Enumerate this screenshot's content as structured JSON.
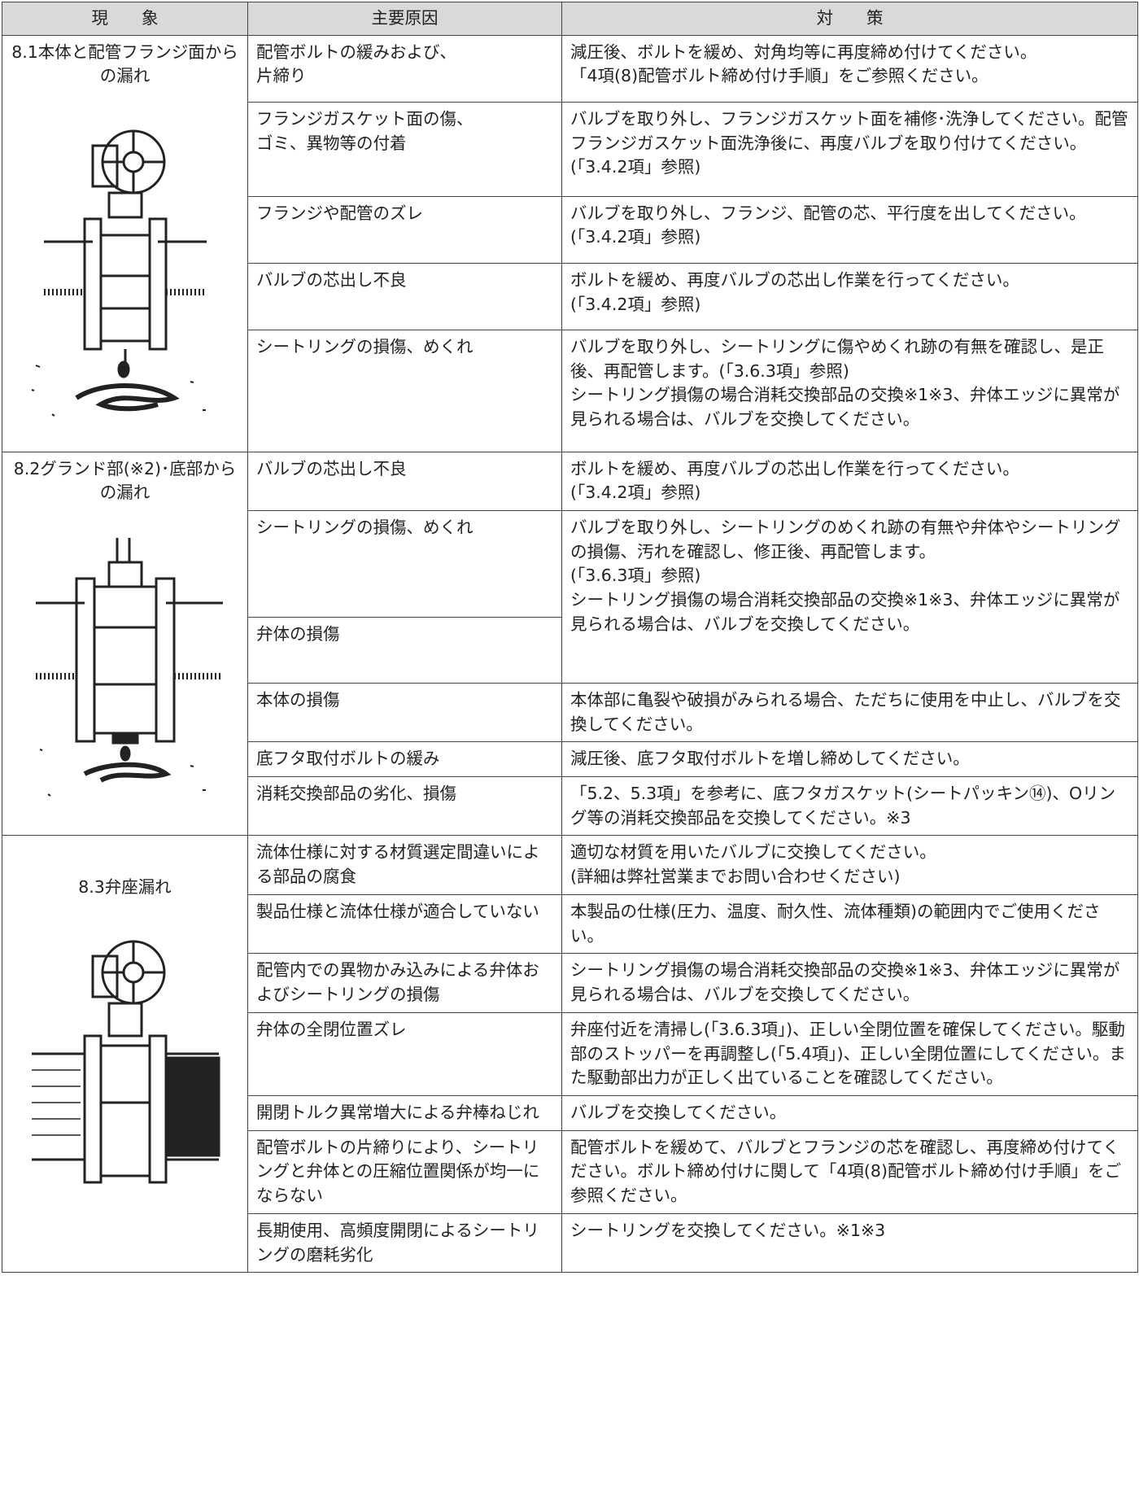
{
  "table": {
    "header": [
      "現　　象",
      "主要原因",
      "対　　策"
    ],
    "groups": [
      {
        "phenomenon": "8.1本体と配管フランジ面からの漏れ",
        "rows": [
          {
            "causes": [
              "配管ボルトの緩みおよび、\n片締り"
            ],
            "remedy": "減圧後、ボルトを緩め、対角均等に再度締め付けてください。\n「4項(8)配管ボルト締め付け手順」をご参照ください。"
          },
          {
            "causes": [
              "フランジガスケット面の傷、\nゴミ、異物等の付着"
            ],
            "remedy": "バルブを取り外し、フランジガスケット面を補修･洗浄してください。配管フランジガスケット面洗浄後に、再度バルブを取り付けてください。(「3.4.2項」参照)"
          },
          {
            "causes": [
              "フランジや配管のズレ"
            ],
            "remedy": "バルブを取り外し、フランジ、配管の芯、平行度を出してください。(「3.4.2項」参照)"
          },
          {
            "causes": [
              "バルブの芯出し不良"
            ],
            "remedy": "ボルトを緩め、再度バルブの芯出し作業を行ってください。\n(「3.4.2項」参照)"
          },
          {
            "causes": [
              "シートリングの損傷、めくれ"
            ],
            "remedy": "バルブを取り外し、シートリングに傷やめくれ跡の有無を確認し、是正後、再配管します。(「3.6.3項」参照)\nシートリング損傷の場合消耗交換部品の交換※1※3、弁体エッジに異常が見られる場合は、バルブを交換してください。"
          }
        ]
      },
      {
        "phenomenon": "8.2グランド部(※2)･底部からの漏れ",
        "rows": [
          {
            "causes": [
              "バルブの芯出し不良"
            ],
            "remedy": "ボルトを緩め、再度バルブの芯出し作業を行ってください。\n(「3.4.2項」参照)"
          },
          {
            "causes": [
              "シートリングの損傷、めくれ",
              "弁体の損傷"
            ],
            "remedy": "バルブを取り外し、シートリングのめくれ跡の有無や弁体やシートリングの損傷、汚れを確認し、修正後、再配管します。\n(「3.6.3項」参照)\nシートリング損傷の場合消耗交換部品の交換※1※3、弁体エッジに異常が見られる場合は、バルブを交換してください。"
          },
          {
            "causes": [
              "本体の損傷"
            ],
            "remedy": "本体部に亀裂や破損がみられる場合、ただちに使用を中止し、バルブを交換してください。"
          },
          {
            "causes": [
              "底フタ取付ボルトの緩み"
            ],
            "remedy": "減圧後、底フタ取付ボルトを増し締めしてください。"
          },
          {
            "causes": [
              "消耗交換部品の劣化、損傷"
            ],
            "remedy": "「5.2、5.3項」を参考に、底フタガスケット(シートパッキン⑭)、Oリング等の消耗交換部品を交換してください。※3"
          }
        ]
      },
      {
        "phenomenon": "8.3弁座漏れ",
        "rows": [
          {
            "causes": [
              "流体仕様に対する材質選定間違いによる部品の腐食"
            ],
            "remedy": "適切な材質を用いたバルブに交換してください。\n(詳細は弊社営業までお問い合わせください)"
          },
          {
            "causes": [
              "製品仕様と流体仕様が適合していない"
            ],
            "remedy": "本製品の仕様(圧力、温度、耐久性、流体種類)の範囲内でご使用ください。"
          },
          {
            "causes": [
              "配管内での異物かみ込みによる弁体およびシートリングの損傷"
            ],
            "remedy": "シートリング損傷の場合消耗交換部品の交換※1※3、弁体エッジに異常が見られる場合は、バルブを交換してください。"
          },
          {
            "causes": [
              "弁体の全閉位置ズレ"
            ],
            "remedy": "弁座付近を清掃し(「3.6.3項」)、正しい全閉位置を確保してください。駆動部のストッパーを再調整し(「5.4項」)、正しい全閉位置にしてください。また駆動部出力が正しく出ていることを確認してください。"
          },
          {
            "causes": [
              "開閉トルク異常増大による弁棒ねじれ"
            ],
            "remedy": "バルブを交換してください。"
          },
          {
            "causes": [
              "配管ボルトの片締りにより、シートリングと弁体との圧縮位置関係が均一にならない"
            ],
            "remedy": "配管ボルトを緩めて、バルブとフランジの芯を確認し、再度締め付けてください。ボルト締め付けに関して「4項(8)配管ボルト締め付け手順」をご参照ください。"
          },
          {
            "causes": [
              "長期使用、高頻度開閉によるシートリングの磨耗劣化"
            ],
            "remedy": "シートリングを交換してください。※1※3"
          }
        ]
      }
    ]
  }
}
